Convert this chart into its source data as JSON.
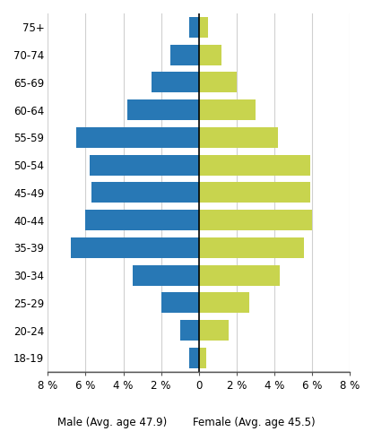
{
  "age_groups": [
    "18-19",
    "20-24",
    "25-29",
    "30-34",
    "35-39",
    "40-44",
    "45-49",
    "50-54",
    "55-59",
    "60-64",
    "65-69",
    "70-74",
    "75+"
  ],
  "male_values": [
    -0.5,
    -1.0,
    -2.0,
    -3.5,
    -6.8,
    -6.0,
    -5.7,
    -5.8,
    -6.5,
    -3.8,
    -2.5,
    -1.5,
    -0.5
  ],
  "female_values": [
    0.4,
    1.6,
    2.7,
    4.3,
    5.6,
    6.0,
    5.9,
    5.9,
    4.2,
    3.0,
    2.0,
    1.2,
    0.5
  ],
  "male_color": "#2878b5",
  "female_color": "#c8d44e",
  "xlim": [
    -8,
    8
  ],
  "xticks": [
    -8,
    -6,
    -4,
    -2,
    0,
    2,
    4,
    6,
    8
  ],
  "xtick_labels": [
    "8 %",
    "6 %",
    "4 %",
    "2 %",
    "0",
    "2 %",
    "4 %",
    "6 %",
    "8 %"
  ],
  "xlabel_male": "Male (Avg. age 47.9)",
  "xlabel_female": "Female (Avg. age 45.5)",
  "grid_color": "#d0d0d0",
  "background_color": "#ffffff",
  "bar_height": 0.75
}
